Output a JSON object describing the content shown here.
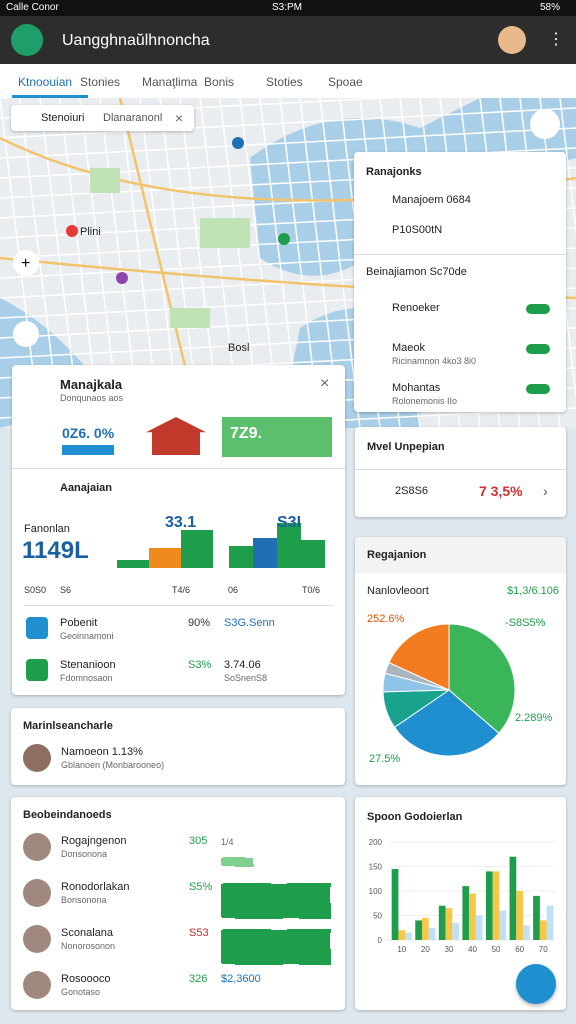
{
  "status_bar": {
    "carrier": "Calle Conor",
    "time": "S3:PM",
    "battery": "58%"
  },
  "app_bar": {
    "title": "Uangghnaŭlhnoncha"
  },
  "tabs": [
    "Ktnoouian",
    "Stonies",
    "Manaţlima",
    "Bonis",
    "Stoties",
    "Spoae"
  ],
  "map": {
    "search": "Stenoiuri",
    "search_hint": "Dlanaranonl",
    "labels": [
      "Plini",
      "Bosl"
    ]
  },
  "layers_panel": {
    "title": "Ranajonks",
    "rows": [
      "Manajoem 0684",
      "P10S00tN"
    ],
    "section": "Beinajiamon Sc70de",
    "items": [
      {
        "name": "Renoeker"
      },
      {
        "name": "Maeok",
        "sub": "Ricinamnon 4ko3 8i0"
      },
      {
        "name": "Mohantas",
        "sub": "Rolonemonis IIo"
      }
    ]
  },
  "summary_card": {
    "title": "Manajkala",
    "subtitle": "Donqunaos aos",
    "stat1": "0Z6. 0%",
    "stat2": "7Z9.",
    "section": "Aanajaian",
    "left_label": "Fanonlan",
    "big_number": "1149L",
    "axis_labels": [
      "S0S0",
      "S6",
      "T4/6",
      "06",
      "T0/6"
    ],
    "mini_charts": [
      {
        "label": "33.1",
        "ylim": [
          0,
          50
        ],
        "values": [
          8,
          20,
          38
        ],
        "colors": [
          "#1e9e4a",
          "#f08a1c",
          "#1e9e4a"
        ]
      },
      {
        "label": "S3I",
        "ylim": [
          0,
          50
        ],
        "values": [
          22,
          30,
          45,
          28
        ],
        "colors": [
          "#1e9e4a",
          "#1f6fb5",
          "#1e9e4a",
          "#1e9e4a"
        ]
      }
    ],
    "rows": [
      {
        "name": "Pobenit",
        "sub": "Geoinnamoni",
        "value": "90%",
        "metric": "S3G.Senn"
      },
      {
        "name": "Stenanioon",
        "sub": "Fdomnosaon",
        "value": "S3%",
        "metric": "3.74.06",
        "sub2": "SoSnenS8"
      }
    ]
  },
  "fees_card": {
    "title": "Mvel Unpepian",
    "value": "2S8S6",
    "change": "7 3,5%"
  },
  "pie_card": {
    "title": "Regajanion",
    "subtitle": "Nanlovleoort",
    "total": "$1,3/6.106",
    "labels": [
      "252.6%",
      "-S8S5%",
      "2.289%",
      "27.5%"
    ],
    "slices": [
      {
        "value": 40,
        "color": "#3bb55a"
      },
      {
        "value": 32,
        "color": "#1f8fd0"
      },
      {
        "value": 10,
        "color": "#19a38f"
      },
      {
        "value": 5,
        "color": "#8fc3e8"
      },
      {
        "value": 3,
        "color": "#a9b4bd"
      },
      {
        "value": 20,
        "color": "#f47c20"
      }
    ]
  },
  "leader_card": {
    "title": "Marinlseancharle",
    "name": "Namoeon 1.13%",
    "sub": "Gblanoen (Monbarooneo)"
  },
  "list_card": {
    "title": "Beobeindanoeds",
    "column": "1/4",
    "rows": [
      {
        "name": "Rogajngenon",
        "sub": "Donsonona",
        "value": "305",
        "bar": 30
      },
      {
        "name": "Ronodorlakan",
        "sub": "Bonsonona",
        "value": "S5%",
        "bar": 100
      },
      {
        "name": "Sconalana",
        "sub": "Nonorosonon",
        "value": "S53",
        "bar": 100
      },
      {
        "name": "Rosoooco",
        "sub": "Gonotaso",
        "value": "326",
        "metric": "$2,3600"
      }
    ]
  },
  "bar_card": {
    "title": "Spoon Godoierlan",
    "ylim": [
      0,
      200
    ],
    "yticks": [
      0,
      50,
      100,
      150,
      200
    ],
    "categories": [
      "10",
      "20",
      "30",
      "40",
      "50",
      "60",
      "70"
    ],
    "series": [
      {
        "color": "#1e9e4a",
        "values": [
          145,
          40,
          70,
          110,
          140,
          170,
          90
        ]
      },
      {
        "color": "#f5c84c",
        "values": [
          20,
          45,
          65,
          95,
          140,
          100,
          40
        ]
      },
      {
        "color": "#bfe0f5",
        "values": [
          15,
          25,
          35,
          50,
          60,
          30,
          70
        ]
      }
    ]
  }
}
